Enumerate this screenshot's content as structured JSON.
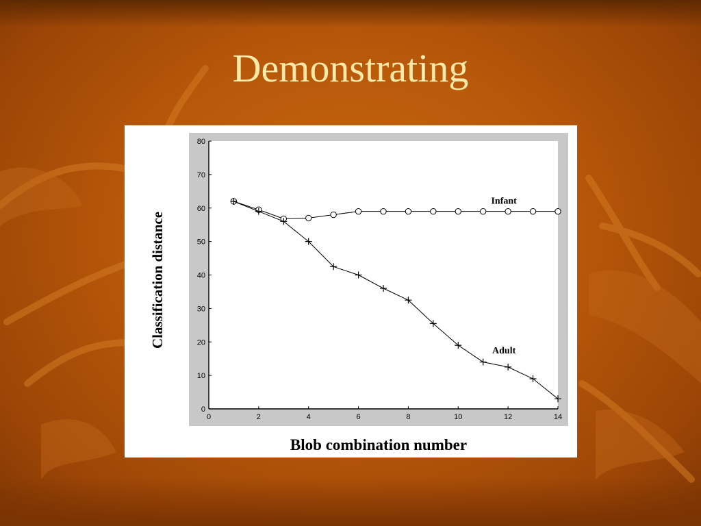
{
  "slide": {
    "title": "Demonstrating"
  },
  "colors": {
    "background": "#b8580a",
    "title_text": "#ffe9a8",
    "plot_frame": "#c8c8c8"
  },
  "chart_data": {
    "type": "line",
    "title": "",
    "xlabel": "Blob combination number",
    "ylabel": "Classification distance",
    "xlim": [
      0,
      14
    ],
    "ylim": [
      0,
      80
    ],
    "xticks": [
      0,
      2,
      4,
      6,
      8,
      10,
      12,
      14
    ],
    "yticks": [
      0,
      10,
      20,
      30,
      40,
      50,
      60,
      70,
      80
    ],
    "grid": false,
    "series": [
      {
        "name": "Infant",
        "marker": "circle",
        "x": [
          1,
          2,
          3,
          4,
          5,
          6,
          7,
          8,
          9,
          10,
          11,
          12,
          13,
          14
        ],
        "y": [
          62,
          59.5,
          56.8,
          57,
          58,
          59,
          59,
          59,
          59,
          59,
          59,
          59,
          59,
          59
        ]
      },
      {
        "name": "Adult",
        "marker": "plus",
        "x": [
          1,
          2,
          3,
          4,
          5,
          6,
          7,
          8,
          9,
          10,
          11,
          12,
          13,
          14
        ],
        "y": [
          62,
          59,
          56,
          50,
          42.5,
          40,
          36,
          32.5,
          25.5,
          19,
          14,
          12.5,
          9,
          3
        ]
      }
    ]
  }
}
